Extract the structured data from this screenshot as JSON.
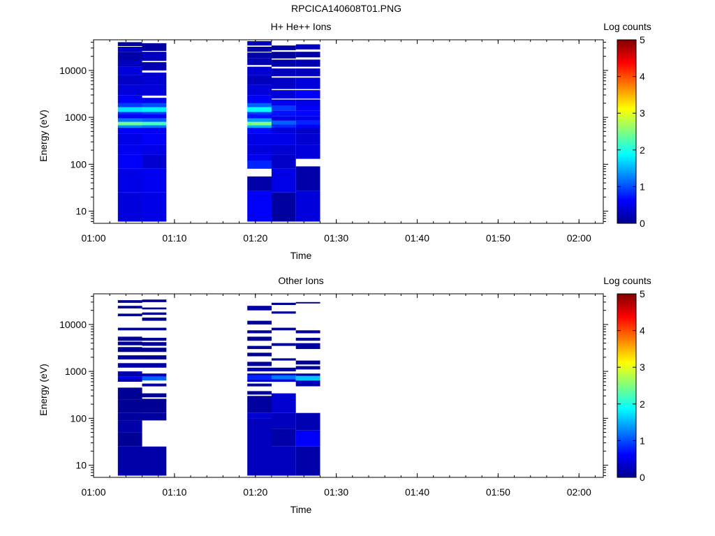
{
  "figure": {
    "title": "RPCICA140608T01.PNG"
  },
  "chart_data": [
    {
      "type": "heatmap",
      "title": "H+ He++ Ions",
      "xlabel": "Time",
      "ylabel": "Energy (eV)",
      "x_ticks": [
        "01:00",
        "01:10",
        "01:20",
        "01:30",
        "01:40",
        "01:50",
        "02:00"
      ],
      "xlim": [
        "01:00",
        "02:03"
      ],
      "ylim": [
        5.5,
        45000
      ],
      "y_scale": "log",
      "y_ticks": [
        10,
        100,
        1000,
        10000
      ],
      "colorbar": {
        "label": "Log counts",
        "range": [
          0,
          5
        ],
        "ticks": [
          0,
          1,
          2,
          3,
          4,
          5
        ],
        "colormap": "jet"
      },
      "time_bins": [
        [
          "01:03",
          "01:06"
        ],
        [
          "01:06",
          "01:09"
        ],
        [
          "01:19",
          "01:22"
        ],
        [
          "01:22",
          "01:25"
        ],
        [
          "01:25",
          "01:28"
        ]
      ],
      "columns": [
        [
          [
            6,
            25,
            0.45
          ],
          [
            25,
            80,
            0.5
          ],
          [
            80,
            160,
            0.6
          ],
          [
            160,
            260,
            0.55
          ],
          [
            260,
            450,
            0.5
          ],
          [
            450,
            600,
            0.6
          ],
          [
            600,
            680,
            1.3
          ],
          [
            680,
            800,
            2.4
          ],
          [
            800,
            950,
            1.2
          ],
          [
            950,
            1150,
            0.6
          ],
          [
            1150,
            1300,
            0.8
          ],
          [
            1300,
            1650,
            1.75
          ],
          [
            1650,
            2000,
            0.9
          ],
          [
            2000,
            3000,
            0.6
          ],
          [
            3000,
            5000,
            0.45
          ],
          [
            5000,
            8000,
            0.35
          ],
          [
            8000,
            12000,
            0.45
          ],
          [
            12000,
            17000,
            0.3
          ],
          [
            17000,
            25000,
            0.2
          ],
          [
            25000,
            32000,
            0.35
          ],
          [
            33000,
            40000,
            0.15
          ]
        ],
        [
          [
            6,
            25,
            0.5
          ],
          [
            25,
            80,
            0.55
          ],
          [
            80,
            160,
            0.4
          ],
          [
            160,
            260,
            0.5
          ],
          [
            260,
            450,
            0.6
          ],
          [
            450,
            600,
            0.55
          ],
          [
            600,
            680,
            1.2
          ],
          [
            680,
            800,
            2.2
          ],
          [
            800,
            950,
            1.1
          ],
          [
            950,
            1150,
            0.6
          ],
          [
            1150,
            1300,
            0.9
          ],
          [
            1300,
            1650,
            1.8
          ],
          [
            1650,
            2000,
            1.0
          ],
          [
            2000,
            2600,
            0.55
          ],
          [
            2900,
            5000,
            0.45
          ],
          [
            5000,
            9000,
            0.4
          ],
          [
            10000,
            15000,
            0.25
          ],
          [
            16000,
            25000,
            0.3
          ],
          [
            26000,
            38000,
            0.15
          ]
        ],
        [
          [
            6,
            27,
            0.6
          ],
          [
            27,
            55,
            0.2
          ],
          [
            80,
            120,
            0.8
          ],
          [
            120,
            160,
            0.55
          ],
          [
            160,
            260,
            0.45
          ],
          [
            260,
            450,
            0.5
          ],
          [
            450,
            600,
            0.65
          ],
          [
            600,
            680,
            1.5
          ],
          [
            680,
            800,
            2.5
          ],
          [
            800,
            950,
            1.4
          ],
          [
            950,
            1150,
            0.7
          ],
          [
            1150,
            1300,
            0.9
          ],
          [
            1300,
            1650,
            1.9
          ],
          [
            1650,
            2000,
            1.1
          ],
          [
            2000,
            3000,
            0.6
          ],
          [
            3000,
            5000,
            0.45
          ],
          [
            5000,
            8000,
            0.3
          ],
          [
            8000,
            12000,
            0.4
          ],
          [
            13000,
            18000,
            0.25
          ],
          [
            18000,
            24000,
            0.2
          ],
          [
            25000,
            32000,
            0.2
          ],
          [
            34000,
            42000,
            0.3
          ]
        ],
        [
          [
            6,
            25,
            0.15
          ],
          [
            25,
            80,
            0.5
          ],
          [
            80,
            160,
            0.35
          ],
          [
            160,
            260,
            0.4
          ],
          [
            260,
            450,
            0.5
          ],
          [
            450,
            600,
            0.45
          ],
          [
            600,
            700,
            0.8
          ],
          [
            700,
            850,
            1.1
          ],
          [
            850,
            1050,
            0.5
          ],
          [
            1050,
            1400,
            0.7
          ],
          [
            1400,
            1800,
            0.9
          ],
          [
            1800,
            2400,
            0.55
          ],
          [
            2500,
            3800,
            0.45
          ],
          [
            4000,
            7000,
            0.35
          ],
          [
            7500,
            11000,
            0.3
          ],
          [
            12000,
            17000,
            0.2
          ],
          [
            18000,
            25000,
            0.15
          ],
          [
            27000,
            34000,
            0.2
          ]
        ],
        [
          [
            6,
            27,
            0.45
          ],
          [
            27,
            90,
            0.2
          ],
          [
            130,
            260,
            0.45
          ],
          [
            260,
            450,
            0.4
          ],
          [
            450,
            600,
            0.35
          ],
          [
            600,
            700,
            0.6
          ],
          [
            700,
            850,
            0.8
          ],
          [
            850,
            1050,
            0.55
          ],
          [
            1050,
            1400,
            0.65
          ],
          [
            1400,
            1800,
            0.6
          ],
          [
            1800,
            2400,
            0.5
          ],
          [
            2500,
            3800,
            0.6
          ],
          [
            4000,
            7000,
            0.45
          ],
          [
            7500,
            11000,
            0.3
          ],
          [
            12000,
            17000,
            0.25
          ],
          [
            19000,
            25000,
            0.2
          ],
          [
            28000,
            36000,
            0.3
          ]
        ]
      ]
    },
    {
      "type": "heatmap",
      "title": "Other Ions",
      "xlabel": "Time",
      "ylabel": "Energy (eV)",
      "x_ticks": [
        "01:00",
        "01:10",
        "01:20",
        "01:30",
        "01:40",
        "01:50",
        "02:00"
      ],
      "xlim": [
        "01:00",
        "02:03"
      ],
      "ylim": [
        5.5,
        45000
      ],
      "y_scale": "log",
      "y_ticks": [
        10,
        100,
        1000,
        10000
      ],
      "colorbar": {
        "label": "Log counts",
        "range": [
          0,
          5
        ],
        "ticks": [
          0,
          1,
          2,
          3,
          4,
          5
        ],
        "colormap": "jet"
      },
      "time_bins": [
        [
          "01:03",
          "01:06"
        ],
        [
          "01:06",
          "01:09"
        ],
        [
          "01:19",
          "01:22"
        ],
        [
          "01:22",
          "01:25"
        ],
        [
          "01:25",
          "01:28"
        ]
      ],
      "columns": [
        [
          [
            6,
            25,
            0.2
          ],
          [
            25,
            50,
            0.1
          ],
          [
            50,
            90,
            0.2
          ],
          [
            90,
            130,
            0.15
          ],
          [
            130,
            250,
            0.1
          ],
          [
            250,
            450,
            0.1
          ],
          [
            600,
            700,
            0.2
          ],
          [
            700,
            780,
            0.6
          ],
          [
            780,
            1000,
            0.2
          ],
          [
            1200,
            1500,
            0.2
          ],
          [
            1800,
            2200,
            0.15
          ],
          [
            2600,
            3300,
            0.1
          ],
          [
            3600,
            4300,
            0.1
          ],
          [
            4500,
            5500,
            0.15
          ],
          [
            7500,
            8500,
            0.1
          ],
          [
            15000,
            17000,
            0.1
          ],
          [
            22000,
            25000,
            0.1
          ],
          [
            29000,
            33000,
            0.1
          ]
        ],
        [
          [
            6,
            25,
            0.2
          ],
          [
            90,
            130,
            0.15
          ],
          [
            130,
            260,
            0.1
          ],
          [
            280,
            340,
            0.1
          ],
          [
            480,
            550,
            0.15
          ],
          [
            640,
            780,
            1.1
          ],
          [
            780,
            900,
            0.3
          ],
          [
            1200,
            1500,
            0.2
          ],
          [
            1800,
            2200,
            0.1
          ],
          [
            2600,
            3200,
            0.1
          ],
          [
            3500,
            4200,
            0.1
          ],
          [
            4500,
            5200,
            0.1
          ],
          [
            7500,
            8500,
            0.1
          ],
          [
            12000,
            14000,
            0.1
          ],
          [
            16000,
            18000,
            0.1
          ],
          [
            21000,
            23000,
            0.1
          ],
          [
            30000,
            34000,
            0.1
          ]
        ],
        [
          [
            6,
            100,
            0.3
          ],
          [
            100,
            130,
            0.4
          ],
          [
            130,
            300,
            0.15
          ],
          [
            320,
            380,
            0.1
          ],
          [
            480,
            550,
            0.1
          ],
          [
            600,
            680,
            0.4
          ],
          [
            680,
            820,
            0.8
          ],
          [
            820,
            900,
            0.2
          ],
          [
            1000,
            1200,
            0.3
          ],
          [
            1300,
            1600,
            0.15
          ],
          [
            2100,
            2500,
            0.1
          ],
          [
            3000,
            3500,
            0.1
          ],
          [
            4500,
            5500,
            0.1
          ],
          [
            6500,
            7500,
            0.1
          ],
          [
            10000,
            12000,
            0.1
          ],
          [
            20000,
            25000,
            0.2
          ]
        ],
        [
          [
            6,
            25,
            0.3
          ],
          [
            25,
            60,
            0.2
          ],
          [
            60,
            130,
            0.3
          ],
          [
            130,
            340,
            0.4
          ],
          [
            600,
            680,
            0.4
          ],
          [
            680,
            820,
            1.2
          ],
          [
            820,
            900,
            0.3
          ],
          [
            1000,
            1200,
            0.2
          ],
          [
            1700,
            1900,
            0.1
          ],
          [
            3500,
            4000,
            0.1
          ],
          [
            7500,
            8500,
            0.1
          ],
          [
            17000,
            19000,
            0.1
          ],
          [
            26000,
            29000,
            0.1
          ]
        ],
        [
          [
            6,
            25,
            0.2
          ],
          [
            25,
            55,
            0.6
          ],
          [
            55,
            130,
            0.25
          ],
          [
            480,
            560,
            0.2
          ],
          [
            560,
            640,
            0.3
          ],
          [
            640,
            800,
            1.6
          ],
          [
            800,
            900,
            0.2
          ],
          [
            1100,
            1300,
            0.1
          ],
          [
            1400,
            1700,
            0.1
          ],
          [
            3000,
            4000,
            0.15
          ],
          [
            4500,
            5200,
            0.1
          ],
          [
            6500,
            7500,
            0.1
          ],
          [
            28000,
            30000,
            0.1
          ]
        ]
      ]
    }
  ]
}
